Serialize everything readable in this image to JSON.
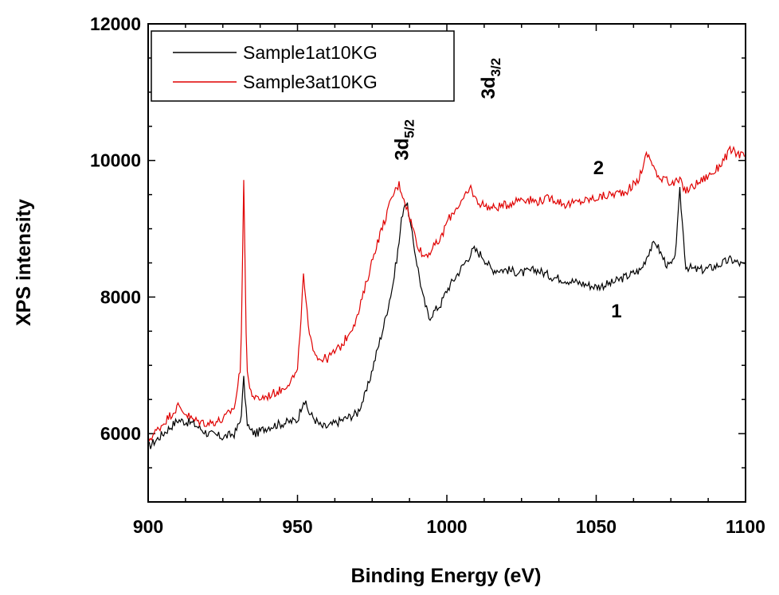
{
  "chart_data": {
    "type": "line",
    "xlabel": "Binding Energy (eV)",
    "ylabel": "XPS intensity",
    "xlim": [
      900,
      1100
    ],
    "ylim": [
      5000,
      12000
    ],
    "x_ticks": [
      900,
      950,
      1000,
      1050,
      1100
    ],
    "y_ticks": [
      6000,
      8000,
      10000,
      12000
    ],
    "grid": false,
    "legend": {
      "placement": "top-left",
      "entries": [
        "Sample1at10KG",
        "Sample3at10KG"
      ]
    },
    "series": [
      {
        "name": "Sample1at10KG",
        "color": "#000000",
        "x": [
          900,
          905,
          910,
          915,
          920,
          925,
          929,
          931,
          932,
          933,
          934,
          936,
          940,
          945,
          950,
          952,
          954,
          958,
          960,
          965,
          970,
          973,
          976,
          979,
          982,
          984,
          985,
          986,
          987,
          988,
          990,
          992,
          994,
          996,
          998,
          1000,
          1003,
          1006,
          1009,
          1012,
          1015,
          1020,
          1025,
          1030,
          1035,
          1040,
          1045,
          1050,
          1055,
          1060,
          1065,
          1068,
          1070,
          1072,
          1074,
          1076,
          1077,
          1078,
          1079,
          1080,
          1083,
          1086,
          1090,
          1095,
          1100
        ],
        "y": [
          5800,
          6000,
          6200,
          6150,
          6000,
          5950,
          6000,
          6200,
          6800,
          6200,
          6050,
          6000,
          6100,
          6150,
          6200,
          6500,
          6300,
          6100,
          6100,
          6200,
          6300,
          6600,
          7100,
          7600,
          8200,
          8800,
          9200,
          9400,
          9300,
          9000,
          8500,
          8000,
          7700,
          7800,
          7900,
          8100,
          8300,
          8500,
          8700,
          8600,
          8400,
          8400,
          8350,
          8400,
          8300,
          8250,
          8200,
          8150,
          8200,
          8300,
          8400,
          8700,
          8800,
          8600,
          8450,
          8500,
          8900,
          9550,
          9000,
          8450,
          8400,
          8400,
          8450,
          8550,
          8450
        ]
      },
      {
        "name": "Sample3at10KG",
        "color": "#e00000",
        "x": [
          900,
          905,
          910,
          915,
          920,
          925,
          929,
          931,
          932,
          933,
          934,
          936,
          940,
          945,
          950,
          952,
          954,
          957,
          960,
          965,
          970,
          973,
          976,
          979,
          982,
          984,
          986,
          988,
          990,
          992,
          994,
          996,
          998,
          1000,
          1003,
          1006,
          1008,
          1010,
          1015,
          1020,
          1025,
          1030,
          1035,
          1040,
          1045,
          1050,
          1055,
          1060,
          1064,
          1067,
          1069,
          1071,
          1073,
          1075,
          1078,
          1080,
          1085,
          1090,
          1095,
          1100
        ],
        "y": [
          5900,
          6150,
          6400,
          6200,
          6150,
          6200,
          6400,
          7000,
          9650,
          7000,
          6650,
          6500,
          6550,
          6650,
          6900,
          8300,
          7400,
          7100,
          7100,
          7300,
          7700,
          8200,
          8700,
          9100,
          9500,
          9650,
          9400,
          9100,
          8800,
          8600,
          8650,
          8750,
          8850,
          9100,
          9300,
          9450,
          9600,
          9400,
          9300,
          9350,
          9450,
          9400,
          9450,
          9350,
          9400,
          9450,
          9500,
          9550,
          9700,
          10100,
          9950,
          9700,
          9800,
          9650,
          9700,
          9550,
          9700,
          9850,
          10150,
          10050
        ]
      }
    ],
    "annotations": [
      {
        "text": "3d",
        "sub": "5/2",
        "x": 987,
        "y": 10000,
        "rotation": -90
      },
      {
        "text": "3d",
        "sub": "3/2",
        "x": 1016,
        "y": 10900,
        "rotation": -90
      },
      {
        "text": "2",
        "x": 1049,
        "y": 9800
      },
      {
        "text": "1",
        "x": 1055,
        "y": 7700
      }
    ]
  }
}
